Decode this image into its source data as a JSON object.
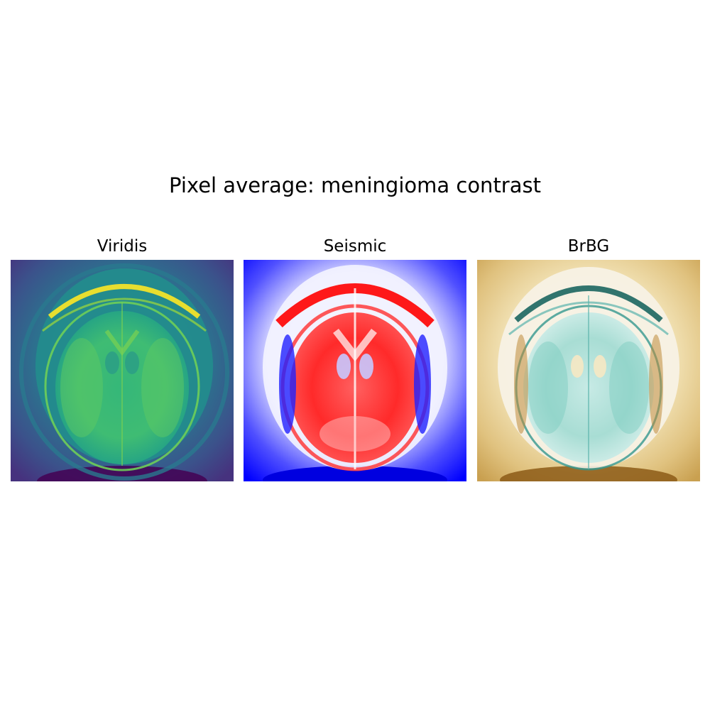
{
  "figure": {
    "title": "Pixel average: meningioma contrast"
  },
  "panels": [
    {
      "title": "Viridis",
      "colormap": "viridis",
      "colors": {
        "background": "#3b528b",
        "inner": "#2a8c8a",
        "brain": "#52b86a",
        "ring": "#8fd14f",
        "highlight": "#dde318",
        "dark": "#440154"
      }
    },
    {
      "title": "Seismic",
      "colormap": "seismic",
      "colors": {
        "background": "#0000ff",
        "inner": "#ffffff",
        "brain": "#ff2a2a",
        "ring": "#ff0000",
        "highlight": "#ffb0b0",
        "dark": "#0000ee"
      }
    },
    {
      "title": "BrBG",
      "colormap": "BrBG",
      "colors": {
        "background": "#d8b870",
        "inner": "#f5f5f5",
        "brain": "#8fd0c5",
        "ring": "#2b8a80",
        "highlight": "#0e5e58",
        "dark": "#8c5a16"
      }
    }
  ]
}
